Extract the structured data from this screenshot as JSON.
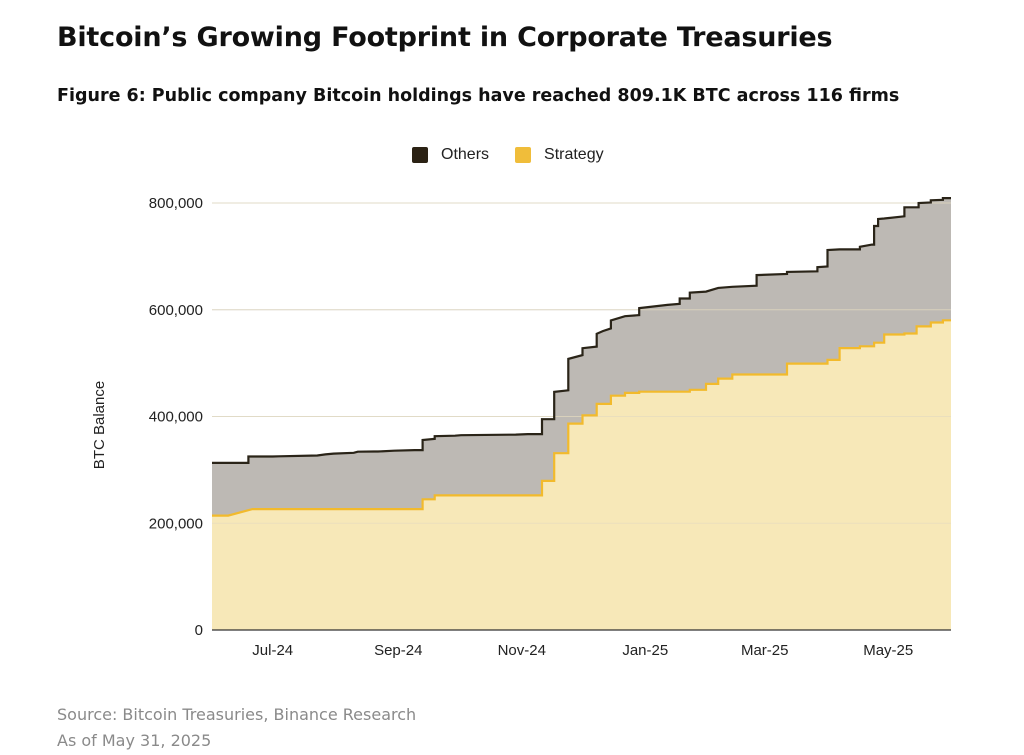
{
  "header": {
    "title": "Bitcoin’s Growing Footprint in Corporate Treasuries",
    "subtitle": "Figure 6: Public company Bitcoin holdings have reached 809.1K BTC across 116 firms"
  },
  "colors": {
    "others_area": "#bdb9b4",
    "others_line": "#2a2418",
    "strategy_area": "#f7e8b8",
    "strategy_line": "#f2ba2c",
    "legend_others": "#2b2214",
    "legend_strategy": "#f0bd3a",
    "grid": "#d9d9d9"
  },
  "legend": {
    "items": [
      {
        "label": "Others",
        "color_key": "legend_others"
      },
      {
        "label": "Strategy",
        "color_key": "legend_strategy"
      }
    ]
  },
  "chart_data": {
    "type": "area",
    "stacked": true,
    "title": "Figure 6: Public company Bitcoin holdings have reached 809.1K BTC across 116 firms",
    "xlabel": "",
    "ylabel": "BTC Balance",
    "ylim": [
      0,
      800000
    ],
    "yticks": [
      0,
      200000,
      400000,
      600000,
      800000
    ],
    "ytick_labels": [
      "0",
      "200,000",
      "400,000",
      "600,000",
      "800,000"
    ],
    "xlim_days": [
      0,
      365
    ],
    "xticks": [
      {
        "label": "Jul-24",
        "day": 30
      },
      {
        "label": "Sep-24",
        "day": 92
      },
      {
        "label": "Nov-24",
        "day": 153
      },
      {
        "label": "Jan-25",
        "day": 214
      },
      {
        "label": "Mar-25",
        "day": 273
      },
      {
        "label": "May-25",
        "day": 334
      }
    ],
    "grid": true,
    "legend_position": "top",
    "series": [
      {
        "name": "Strategy",
        "points": [
          [
            0,
            214400
          ],
          [
            8,
            214400
          ],
          [
            20,
            226500
          ],
          [
            45,
            226500
          ],
          [
            60,
            226500
          ],
          [
            104,
            226500
          ],
          [
            104,
            244800
          ],
          [
            110,
            244800
          ],
          [
            110,
            252200
          ],
          [
            163,
            252200
          ],
          [
            163,
            279400
          ],
          [
            169,
            279400
          ],
          [
            169,
            331200
          ],
          [
            176,
            331200
          ],
          [
            176,
            386700
          ],
          [
            183,
            386700
          ],
          [
            183,
            402100
          ],
          [
            190,
            402100
          ],
          [
            190,
            423700
          ],
          [
            197,
            423700
          ],
          [
            197,
            439000
          ],
          [
            204,
            439000
          ],
          [
            204,
            444300
          ],
          [
            211,
            444300
          ],
          [
            211,
            446400
          ],
          [
            236,
            446400
          ],
          [
            236,
            450000
          ],
          [
            244,
            450000
          ],
          [
            244,
            461000
          ],
          [
            250,
            461000
          ],
          [
            250,
            471100
          ],
          [
            257,
            471100
          ],
          [
            257,
            478700
          ],
          [
            284,
            478700
          ],
          [
            284,
            499100
          ],
          [
            299,
            499100
          ],
          [
            299,
            499200
          ],
          [
            304,
            499200
          ],
          [
            304,
            506100
          ],
          [
            310,
            506100
          ],
          [
            310,
            528200
          ],
          [
            320,
            528200
          ],
          [
            320,
            531600
          ],
          [
            327,
            531600
          ],
          [
            327,
            538200
          ],
          [
            332,
            538200
          ],
          [
            332,
            553600
          ],
          [
            342,
            553600
          ],
          [
            342,
            555500
          ],
          [
            348,
            555500
          ],
          [
            348,
            568800
          ],
          [
            355,
            568800
          ],
          [
            355,
            576200
          ],
          [
            361,
            576200
          ],
          [
            361,
            580200
          ],
          [
            365,
            580200
          ]
        ]
      },
      {
        "name": "Others",
        "points": [
          [
            0,
            313000
          ],
          [
            18,
            313000
          ],
          [
            18,
            325000
          ],
          [
            30,
            325000
          ],
          [
            33,
            325500
          ],
          [
            52,
            327000
          ],
          [
            56,
            329000
          ],
          [
            60,
            330500
          ],
          [
            70,
            332000
          ],
          [
            72,
            334000
          ],
          [
            80,
            334500
          ],
          [
            82,
            334500
          ],
          [
            90,
            336000
          ],
          [
            100,
            337000
          ],
          [
            104,
            337000
          ],
          [
            104,
            356000
          ],
          [
            110,
            358000
          ],
          [
            110,
            363000
          ],
          [
            120,
            364000
          ],
          [
            123,
            365000
          ],
          [
            150,
            366000
          ],
          [
            156,
            367000
          ],
          [
            163,
            367000
          ],
          [
            163,
            395000
          ],
          [
            169,
            395000
          ],
          [
            169,
            446000
          ],
          [
            176,
            449000
          ],
          [
            176,
            508000
          ],
          [
            183,
            515000
          ],
          [
            183,
            528000
          ],
          [
            190,
            531000
          ],
          [
            190,
            555000
          ],
          [
            193,
            560000
          ],
          [
            197,
            565000
          ],
          [
            197,
            580000
          ],
          [
            204,
            588000
          ],
          [
            211,
            590000
          ],
          [
            211,
            603000
          ],
          [
            225,
            609000
          ],
          [
            231,
            611000
          ],
          [
            231,
            621000
          ],
          [
            236,
            621000
          ],
          [
            236,
            632000
          ],
          [
            244,
            634000
          ],
          [
            250,
            641000
          ],
          [
            257,
            643000
          ],
          [
            269,
            645000
          ],
          [
            269,
            665000
          ],
          [
            284,
            667000
          ],
          [
            284,
            671000
          ],
          [
            299,
            672000
          ],
          [
            299,
            680000
          ],
          [
            304,
            681000
          ],
          [
            304,
            712000
          ],
          [
            310,
            713000
          ],
          [
            320,
            713000
          ],
          [
            320,
            718000
          ],
          [
            326,
            722000
          ],
          [
            327,
            722000
          ],
          [
            327,
            757000
          ],
          [
            329,
            757000
          ],
          [
            329,
            770000
          ],
          [
            332,
            771000
          ],
          [
            342,
            775000
          ],
          [
            342,
            792000
          ],
          [
            349,
            792000
          ],
          [
            349,
            800000
          ],
          [
            355,
            801000
          ],
          [
            355,
            805000
          ],
          [
            361,
            806000
          ],
          [
            361,
            809100
          ],
          [
            365,
            809100
          ]
        ]
      }
    ]
  },
  "footer": {
    "source": "Source: Bitcoin Treasuries, Binance Research",
    "asof": "As of May 31, 2025"
  }
}
